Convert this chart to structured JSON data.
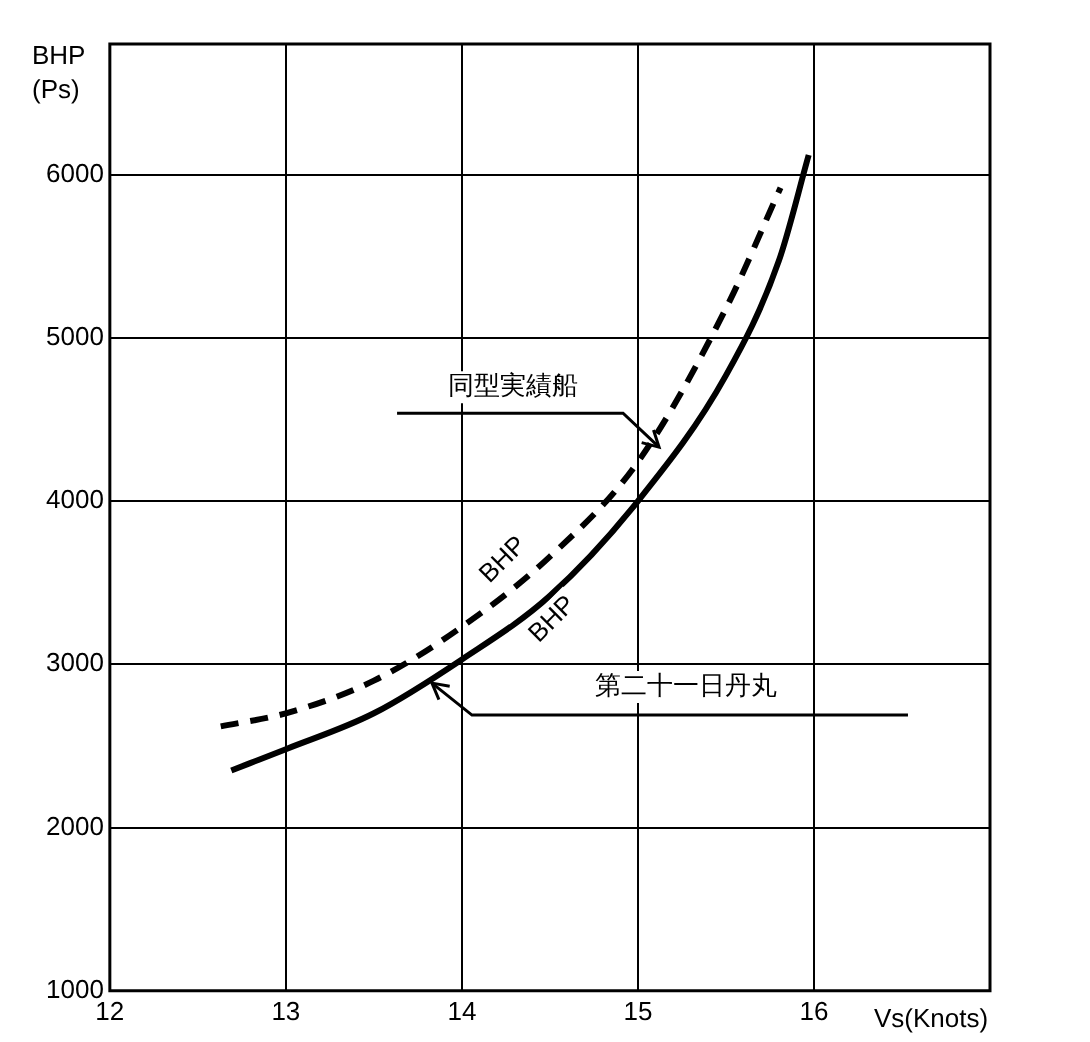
{
  "chart_data": {
    "type": "line",
    "xlabel": "Vs(Knots)",
    "ylabel": "BHP\n(Ps)",
    "xlim": [
      12,
      17
    ],
    "xticks": [
      12,
      13,
      14,
      15,
      16,
      {
        "value": 17,
        "label": null
      }
    ],
    "ylim": [
      1000,
      6800
    ],
    "yticks": [
      1000,
      2000,
      3000,
      4000,
      5000,
      6000
    ],
    "grid": true,
    "series": [
      {
        "color": "#000000",
        "line_style": "dashed",
        "x": [
          12.63,
          13,
          13.5,
          14,
          14.5,
          15,
          15.5,
          15.81
        ],
        "values": [
          2620,
          2700,
          2900,
          3230,
          3660,
          4240,
          5180,
          5920
        ]
      },
      {
        "color": "#000000",
        "line_style": "solid",
        "x": [
          12.69,
          13,
          13.5,
          14,
          14.5,
          15,
          15.5,
          15.8,
          15.97
        ],
        "values": [
          2350,
          2480,
          2700,
          3030,
          3420,
          4000,
          4770,
          5470,
          6120
        ]
      }
    ],
    "annotations": [
      {
        "text": "同型実績船",
        "x": 15.12,
        "y": 4330
      },
      {
        "text": "第二十一日丹丸",
        "x": 13.83,
        "y": 2885
      },
      "BHP",
      "BHP"
    ]
  }
}
